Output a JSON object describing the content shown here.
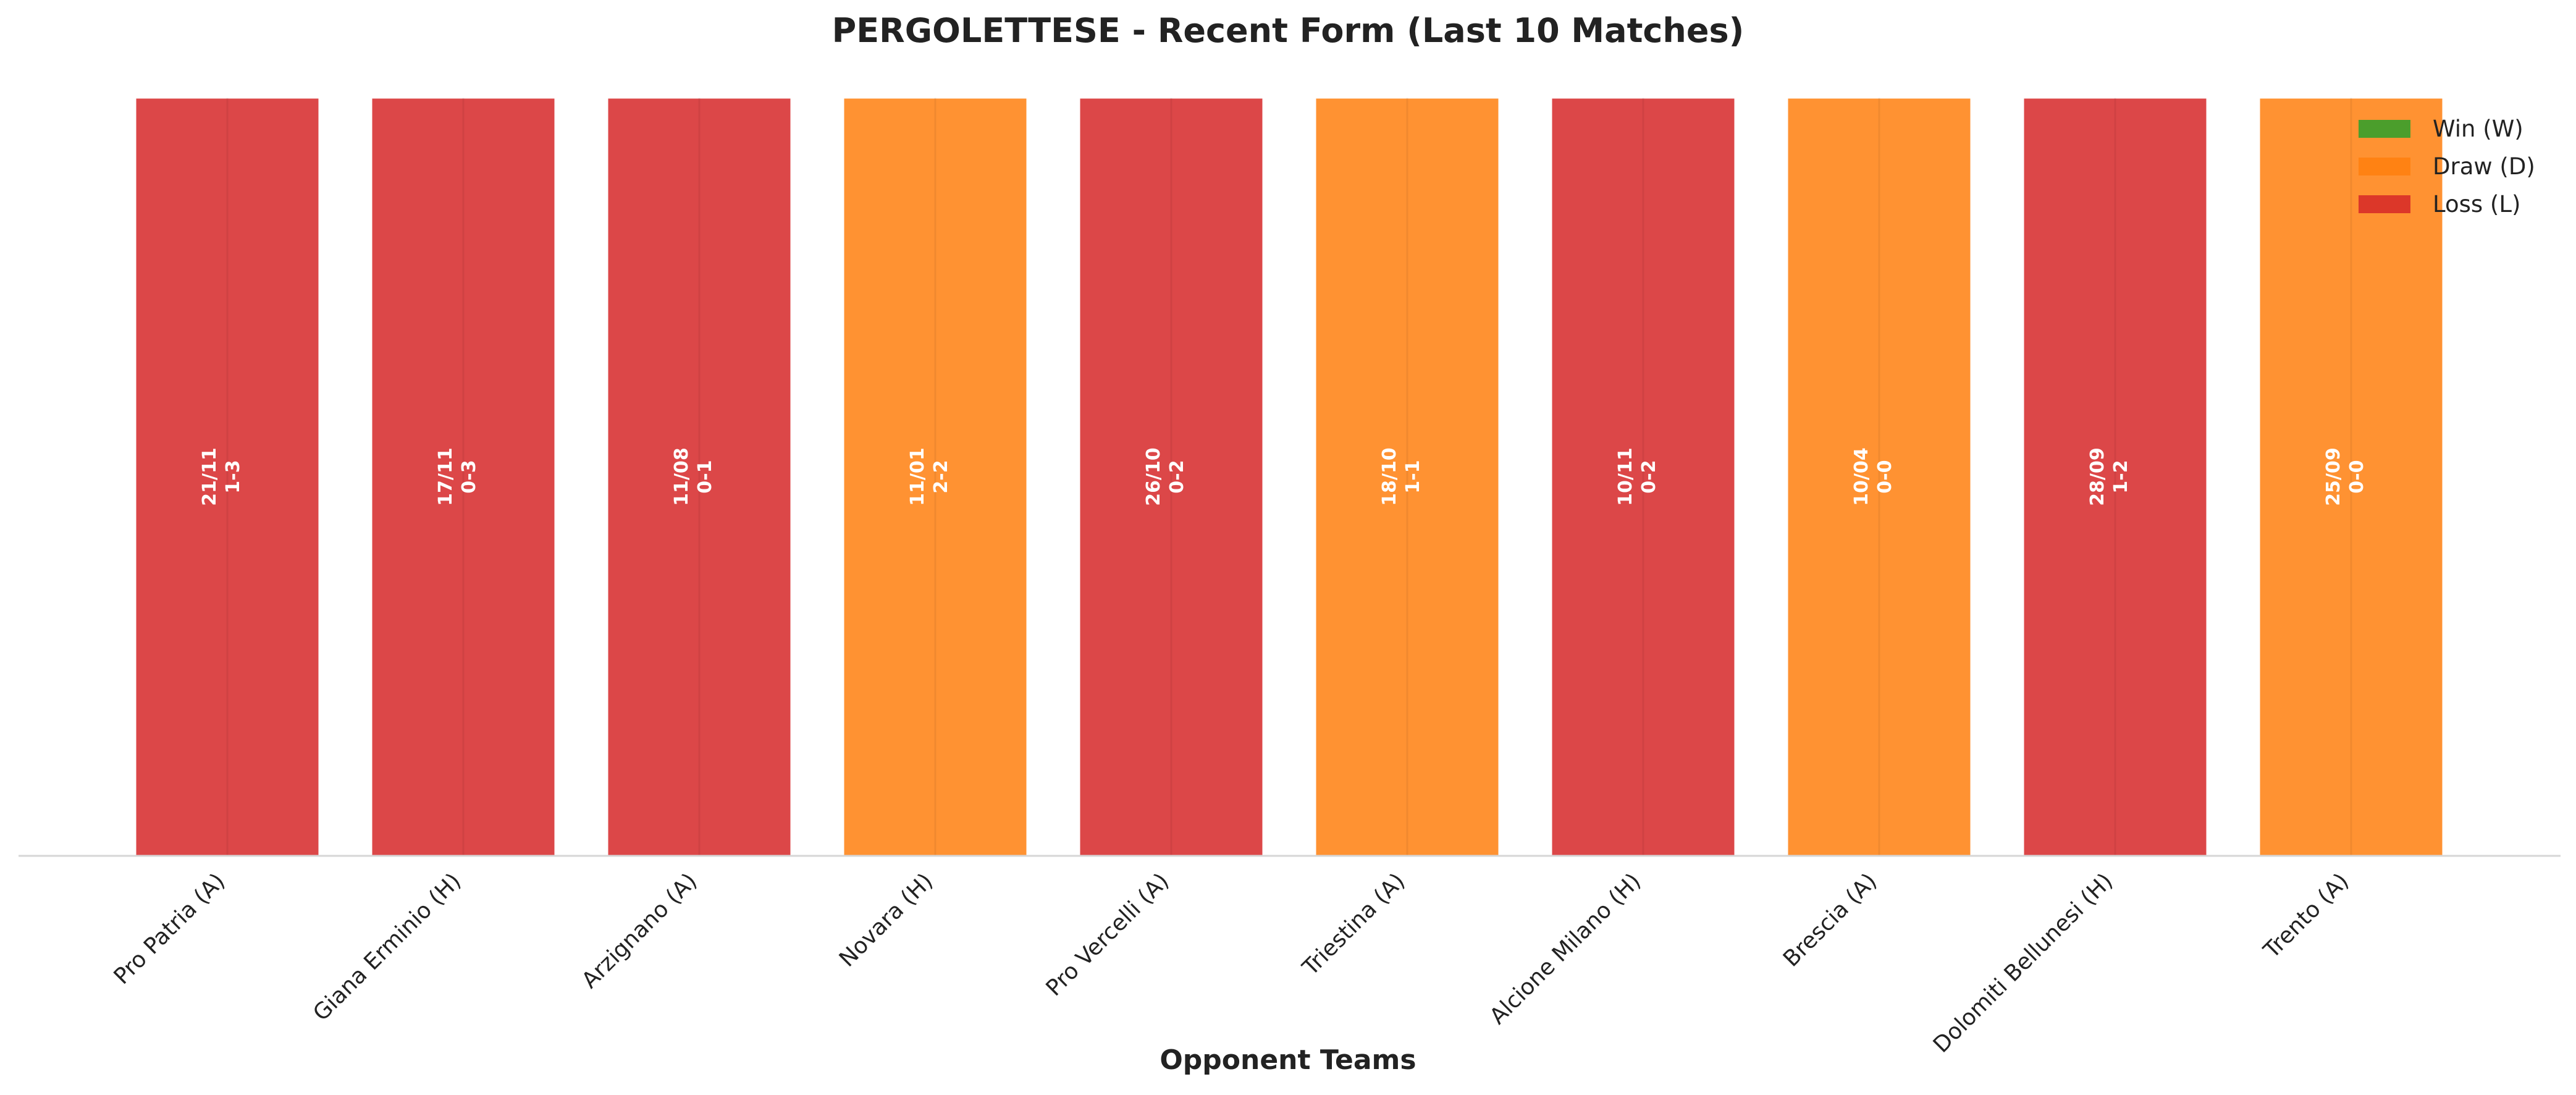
{
  "chart_data": {
    "type": "bar",
    "title": "PERGOLETTESE - Recent Form (Last 10 Matches)",
    "xlabel": "Opponent Teams",
    "ylabel": "",
    "grid": false,
    "legend": {
      "placement": "top-right",
      "entries": [
        {
          "label": "Win (W)",
          "color": "#2ca02c"
        },
        {
          "label": "Draw (D)",
          "color": "#ff7f0e"
        },
        {
          "label": "Loss (L)",
          "color": "#d62728"
        }
      ]
    },
    "categories": [
      "Pro Patria (A)",
      "Giana Erminio (H)",
      "Arzignano (A)",
      "Novara (H)",
      "Pro Vercelli (A)",
      "Triestina (A)",
      "Alcione Milano (H)",
      "Brescia (A)",
      "Dolomiti Bellunesi (H)",
      "Trento (A)"
    ],
    "values": [
      1,
      1,
      1,
      1,
      1,
      1,
      1,
      1,
      1,
      1
    ],
    "results": [
      "L",
      "L",
      "L",
      "D",
      "L",
      "D",
      "L",
      "D",
      "L",
      "D"
    ],
    "dates": [
      "21/11",
      "17/11",
      "11/08",
      "11/01",
      "26/10",
      "18/10",
      "10/11",
      "10/04",
      "28/09",
      "25/09"
    ],
    "scores": [
      "1-3",
      "0-3",
      "0-1",
      "2-2",
      "0-2",
      "1-1",
      "0-2",
      "0-0",
      "1-2",
      "0-0"
    ],
    "colors": {
      "W": "#2ca02c",
      "D": "#ff7f0e",
      "L": "#d62728"
    }
  }
}
